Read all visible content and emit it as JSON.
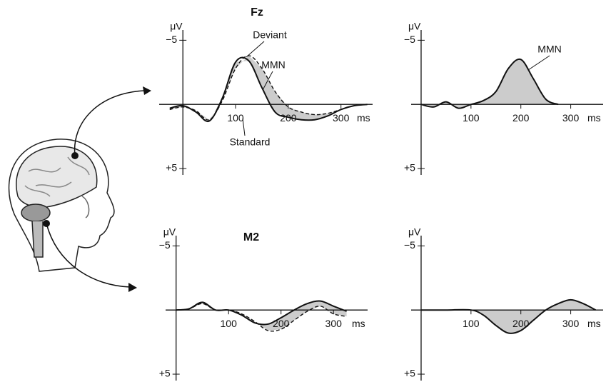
{
  "chart_data": [
    {
      "type": "line",
      "title": "Fz",
      "y_unit": "μV",
      "x_unit": "ms",
      "y_inverted": true,
      "xlim": [
        -45,
        360
      ],
      "ylim": [
        -5.8,
        5.5
      ],
      "xticks": [
        100,
        200,
        300
      ],
      "yticks": [
        {
          "value": -5,
          "label": "−5"
        },
        {
          "value": 5,
          "label": "+5"
        }
      ],
      "x": [
        -25,
        0,
        25,
        50,
        75,
        100,
        125,
        150,
        175,
        200,
        225,
        250,
        275,
        300,
        325,
        350
      ],
      "series": [
        {
          "name": "Standard",
          "color": "#111111",
          "dash": false,
          "values": [
            0.3,
            0.1,
            0.6,
            1.3,
            -0.5,
            -3.3,
            -3.4,
            -1.3,
            0.6,
            1.0,
            1.2,
            1.2,
            0.9,
            0.4,
            0.1,
            0
          ]
        },
        {
          "name": "Deviant",
          "color": "#111111",
          "dash": true,
          "values": [
            0.4,
            0.2,
            0.5,
            1.2,
            -0.3,
            -2.8,
            -3.8,
            -2.8,
            -1.0,
            0.2,
            0.6,
            0.8,
            0.7,
            0.4,
            0.1,
            0
          ]
        }
      ],
      "fill_color": "#cccccc",
      "annotations": [
        "MMN"
      ]
    },
    {
      "type": "line",
      "y_unit": "μV",
      "x_unit": "ms",
      "y_inverted": true,
      "xlim": [
        -20,
        365
      ],
      "ylim": [
        -5.8,
        5.5
      ],
      "xticks": [
        100,
        200,
        300
      ],
      "yticks": [
        {
          "value": -5,
          "label": "−5"
        },
        {
          "value": 5,
          "label": "+5"
        }
      ],
      "x": [
        0,
        25,
        50,
        75,
        100,
        125,
        150,
        175,
        200,
        225,
        250,
        275
      ],
      "series": [
        {
          "color": "#111111",
          "dash": false,
          "values": [
            0,
            0.2,
            -0.2,
            0.3,
            0,
            -0.3,
            -1.0,
            -2.8,
            -3.5,
            -2.0,
            -0.4,
            0
          ]
        }
      ],
      "fill_color": "#cccccc",
      "annotations": [
        "MMN"
      ]
    },
    {
      "type": "line",
      "title": "M2",
      "y_unit": "μV",
      "x_unit": "ms",
      "y_inverted": true,
      "xlim": [
        -20,
        365
      ],
      "ylim": [
        -5.8,
        5.5
      ],
      "xticks": [
        100,
        200,
        300
      ],
      "yticks": [
        {
          "value": -5,
          "label": "−5"
        },
        {
          "value": 5,
          "label": "+5"
        }
      ],
      "x": [
        0,
        25,
        50,
        75,
        100,
        125,
        150,
        175,
        200,
        225,
        250,
        275,
        300,
        325
      ],
      "series": [
        {
          "color": "#111111",
          "dash": false,
          "values": [
            0,
            -0.1,
            -0.6,
            0,
            0,
            0.4,
            1.0,
            1.1,
            0.6,
            0,
            -0.5,
            -0.7,
            -0.3,
            0.1
          ]
        },
        {
          "color": "#111111",
          "dash": true,
          "values": [
            0,
            -0.1,
            -0.5,
            0,
            0,
            0.3,
            0.9,
            1.6,
            1.5,
            0.8,
            0.1,
            -0.3,
            0.3,
            0.5
          ]
        }
      ],
      "fill_color": "#cccccc"
    },
    {
      "type": "line",
      "y_unit": "μV",
      "x_unit": "ms",
      "y_inverted": true,
      "xlim": [
        -20,
        365
      ],
      "ylim": [
        -5.8,
        5.5
      ],
      "xticks": [
        100,
        200,
        300
      ],
      "yticks": [
        {
          "value": -5,
          "label": "−5"
        },
        {
          "value": 5,
          "label": "+5"
        }
      ],
      "x": [
        0,
        50,
        100,
        125,
        150,
        175,
        200,
        225,
        250,
        275,
        300,
        325,
        350
      ],
      "series": [
        {
          "color": "#111111",
          "dash": false,
          "values": [
            0,
            0,
            0,
            0.4,
            1.2,
            1.8,
            1.6,
            0.8,
            0,
            -0.5,
            -0.8,
            -0.5,
            0
          ]
        }
      ],
      "fill_color": "#cccccc"
    }
  ]
}
